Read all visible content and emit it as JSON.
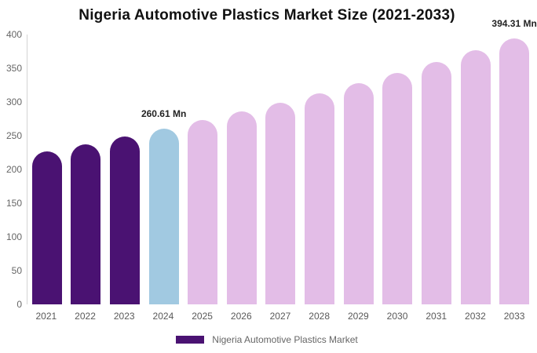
{
  "title": "Nigeria Automotive Plastics Market Size (2021-2033)",
  "legend": {
    "label": "Nigeria Automotive Plastics Market"
  },
  "colors": {
    "historical_bar": "#4A1272",
    "base_year_bar": "#A1C9E1",
    "forecast_bar": "#E3BDE7",
    "legend_swatch": "#4A1272",
    "axis_line": "#d4d4d4",
    "tick_label": "#666666",
    "title_text": "#111111",
    "data_label": "#222222"
  },
  "chart_data": {
    "type": "bar",
    "title": "Nigeria Automotive Plastics Market Size (2021-2033)",
    "unit": "Mn",
    "categories": [
      "2021",
      "2022",
      "2023",
      "2024",
      "2025",
      "2026",
      "2027",
      "2028",
      "2029",
      "2030",
      "2031",
      "2032",
      "2033"
    ],
    "values": [
      227.0,
      237.69,
      248.89,
      260.61,
      272.88,
      285.73,
      299.18,
      313.27,
      328.02,
      343.46,
      359.63,
      376.56,
      394.31
    ],
    "bar_roles": [
      "historical",
      "historical",
      "historical",
      "base_year",
      "forecast",
      "forecast",
      "forecast",
      "forecast",
      "forecast",
      "forecast",
      "forecast",
      "forecast",
      "forecast"
    ],
    "data_labels": [
      {
        "category": "2024",
        "text": "260.61 Mn"
      },
      {
        "category": "2033",
        "text": "394.31 Mn"
      }
    ],
    "xlabel": "",
    "ylabel": "",
    "ylim": [
      0,
      400
    ],
    "yticks": [
      0,
      50,
      100,
      150,
      200,
      250,
      300,
      350,
      400
    ],
    "grid": false,
    "legend_position": "bottom"
  }
}
